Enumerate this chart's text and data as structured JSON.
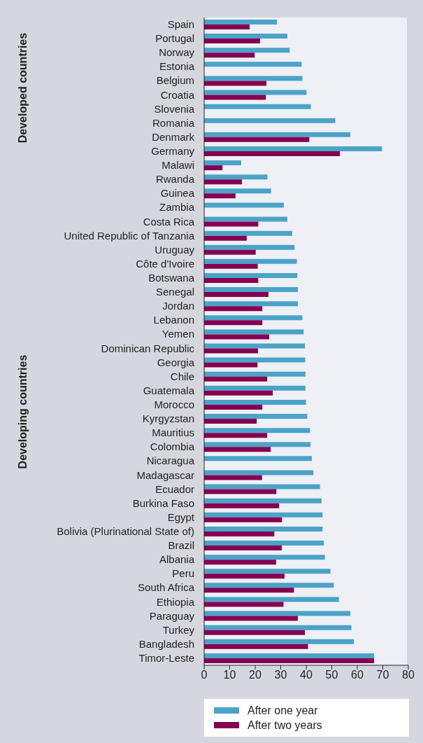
{
  "chart_data": {
    "type": "bar",
    "orientation": "horizontal",
    "categories": [
      "Spain",
      "Portugal",
      "Norway",
      "Estonia",
      "Belgium",
      "Croatia",
      "Slovenia",
      "Romania",
      "Denmark",
      "Germany",
      "Malawi",
      "Rwanda",
      "Guinea",
      "Zambia",
      "Costa Rica",
      "United Republic of Tanzania",
      "Uruguay",
      "Côte d'Ivoire",
      "Botswana",
      "Senegal",
      "Jordan",
      "Lebanon",
      "Yemen",
      "Dominican Republic",
      "Georgia",
      "Chile",
      "Guatemala",
      "Morocco",
      "Kyrgyzstan",
      "Mauritius",
      "Colombia",
      "Nicaragua",
      "Madagascar",
      "Ecuador",
      "Burkina Faso",
      "Egypt",
      "Bolivia (Plurinational State of)",
      "Brazil",
      "Albania",
      "Peru",
      "South Africa",
      "Ethiopia",
      "Paraguay",
      "Turkey",
      "Bangladesh",
      "Timor-Leste"
    ],
    "series": [
      {
        "name": "After one year",
        "color": "#4ba3c7",
        "values": [
          28.5,
          32.6,
          33.5,
          38.2,
          38.5,
          40.1,
          41.8,
          51.4,
          57.3,
          69.7,
          14.5,
          24.8,
          26.2,
          31.2,
          32.6,
          34.5,
          35.4,
          36.3,
          36.5,
          36.7,
          36.7,
          38.5,
          39.0,
          39.5,
          39.6,
          39.7,
          39.7,
          39.9,
          40.4,
          41.5,
          41.7,
          42.2,
          42.8,
          45.4,
          46.0,
          46.4,
          46.4,
          46.9,
          47.3,
          49.5,
          50.8,
          52.8,
          57.3,
          57.7,
          58.7,
          66.6
        ]
      },
      {
        "name": "After two years",
        "color": "#850050",
        "values": [
          17.8,
          21.9,
          19.8,
          null,
          24.4,
          24.2,
          null,
          null,
          41.2,
          53.2,
          7.2,
          14.8,
          12.3,
          null,
          21.2,
          16.7,
          20.2,
          21.0,
          21.2,
          25.2,
          22.8,
          22.8,
          25.5,
          21.1,
          20.9,
          24.7,
          26.9,
          22.8,
          20.6,
          24.7,
          26.1,
          null,
          22.7,
          28.3,
          29.4,
          30.5,
          27.5,
          30.4,
          28.2,
          31.5,
          35.2,
          31.1,
          36.7,
          39.5,
          40.7,
          66.6
        ]
      }
    ],
    "xlim": [
      0,
      80
    ],
    "xticks": [
      0,
      10,
      20,
      30,
      40,
      50,
      60,
      70,
      80
    ],
    "annotations": [
      "Developed countries",
      "Developing countries"
    ],
    "legend": "bottom"
  }
}
